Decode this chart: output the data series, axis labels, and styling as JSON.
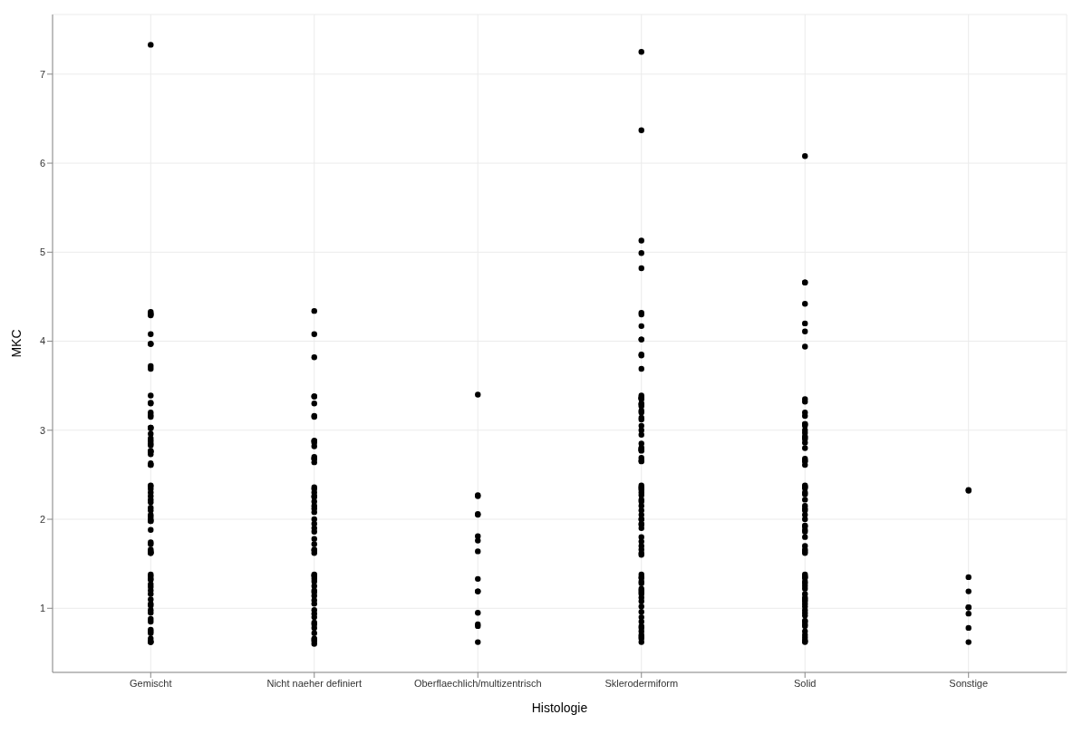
{
  "chart_data": {
    "type": "scatter",
    "xlabel": "Histologie",
    "ylabel": "MKC",
    "marker": "circle",
    "grid": true,
    "categories": [
      "Gemischt",
      "Nicht naeher definiert",
      "Oberflaechlich/multizentrisch",
      "Sklerodermiform",
      "Solid",
      "Sonstige"
    ],
    "ylim": [
      0.28,
      7.67
    ],
    "yticks": [
      1,
      2,
      3,
      4,
      5,
      6,
      7
    ],
    "series": [
      {
        "color": "#000000",
        "x": [
          "Gemischt",
          "Gemischt",
          "Gemischt",
          "Gemischt",
          "Gemischt",
          "Gemischt",
          "Gemischt",
          "Gemischt",
          "Gemischt",
          "Gemischt",
          "Gemischt",
          "Gemischt",
          "Gemischt",
          "Gemischt",
          "Gemischt",
          "Gemischt",
          "Gemischt",
          "Gemischt",
          "Gemischt",
          "Gemischt",
          "Gemischt",
          "Gemischt",
          "Gemischt",
          "Gemischt",
          "Gemischt",
          "Gemischt",
          "Gemischt",
          "Gemischt",
          "Gemischt",
          "Gemischt",
          "Gemischt",
          "Gemischt",
          "Gemischt",
          "Gemischt",
          "Gemischt",
          "Gemischt",
          "Gemischt",
          "Gemischt",
          "Gemischt",
          "Gemischt",
          "Gemischt",
          "Gemischt",
          "Gemischt",
          "Gemischt",
          "Gemischt",
          "Gemischt",
          "Gemischt",
          "Gemischt",
          "Gemischt",
          "Gemischt",
          "Gemischt",
          "Gemischt",
          "Gemischt",
          "Gemischt",
          "Gemischt",
          "Gemischt",
          "Gemischt",
          "Gemischt",
          "Gemischt",
          "Gemischt",
          "Gemischt",
          "Gemischt",
          "Gemischt",
          "Gemischt",
          "Gemischt",
          "Gemischt",
          "Gemischt",
          "Gemischt",
          "Gemischt",
          "Gemischt",
          "Gemischt",
          "Gemischt",
          "Gemischt",
          "Gemischt",
          "Gemischt",
          "Nicht naeher definiert",
          "Nicht naeher definiert",
          "Nicht naeher definiert",
          "Nicht naeher definiert",
          "Nicht naeher definiert",
          "Nicht naeher definiert",
          "Nicht naeher definiert",
          "Nicht naeher definiert",
          "Nicht naeher definiert",
          "Nicht naeher definiert",
          "Nicht naeher definiert",
          "Nicht naeher definiert",
          "Nicht naeher definiert",
          "Nicht naeher definiert",
          "Nicht naeher definiert",
          "Nicht naeher definiert",
          "Nicht naeher definiert",
          "Nicht naeher definiert",
          "Nicht naeher definiert",
          "Nicht naeher definiert",
          "Nicht naeher definiert",
          "Nicht naeher definiert",
          "Nicht naeher definiert",
          "Nicht naeher definiert",
          "Nicht naeher definiert",
          "Nicht naeher definiert",
          "Nicht naeher definiert",
          "Nicht naeher definiert",
          "Nicht naeher definiert",
          "Nicht naeher definiert",
          "Nicht naeher definiert",
          "Nicht naeher definiert",
          "Nicht naeher definiert",
          "Nicht naeher definiert",
          "Nicht naeher definiert",
          "Nicht naeher definiert",
          "Nicht naeher definiert",
          "Nicht naeher definiert",
          "Nicht naeher definiert",
          "Nicht naeher definiert",
          "Nicht naeher definiert",
          "Nicht naeher definiert",
          "Nicht naeher definiert",
          "Nicht naeher definiert",
          "Nicht naeher definiert",
          "Nicht naeher definiert",
          "Nicht naeher definiert",
          "Nicht naeher definiert",
          "Nicht naeher definiert",
          "Nicht naeher definiert",
          "Nicht naeher definiert",
          "Nicht naeher definiert",
          "Nicht naeher definiert",
          "Nicht naeher definiert",
          "Nicht naeher definiert",
          "Nicht naeher definiert",
          "Oberflaechlich/multizentrisch",
          "Oberflaechlich/multizentrisch",
          "Oberflaechlich/multizentrisch",
          "Oberflaechlich/multizentrisch",
          "Oberflaechlich/multizentrisch",
          "Oberflaechlich/multizentrisch",
          "Oberflaechlich/multizentrisch",
          "Oberflaechlich/multizentrisch",
          "Oberflaechlich/multizentrisch",
          "Oberflaechlich/multizentrisch",
          "Oberflaechlich/multizentrisch",
          "Oberflaechlich/multizentrisch",
          "Oberflaechlich/multizentrisch",
          "Oberflaechlich/multizentrisch",
          "Oberflaechlich/multizentrisch",
          "Sklerodermiform",
          "Sklerodermiform",
          "Sklerodermiform",
          "Sklerodermiform",
          "Sklerodermiform",
          "Sklerodermiform",
          "Sklerodermiform",
          "Sklerodermiform",
          "Sklerodermiform",
          "Sklerodermiform",
          "Sklerodermiform",
          "Sklerodermiform",
          "Sklerodermiform",
          "Sklerodermiform",
          "Sklerodermiform",
          "Sklerodermiform",
          "Sklerodermiform",
          "Sklerodermiform",
          "Sklerodermiform",
          "Sklerodermiform",
          "Sklerodermiform",
          "Sklerodermiform",
          "Sklerodermiform",
          "Sklerodermiform",
          "Sklerodermiform",
          "Sklerodermiform",
          "Sklerodermiform",
          "Sklerodermiform",
          "Sklerodermiform",
          "Sklerodermiform",
          "Sklerodermiform",
          "Sklerodermiform",
          "Sklerodermiform",
          "Sklerodermiform",
          "Sklerodermiform",
          "Sklerodermiform",
          "Sklerodermiform",
          "Sklerodermiform",
          "Sklerodermiform",
          "Sklerodermiform",
          "Sklerodermiform",
          "Sklerodermiform",
          "Sklerodermiform",
          "Sklerodermiform",
          "Sklerodermiform",
          "Sklerodermiform",
          "Sklerodermiform",
          "Sklerodermiform",
          "Sklerodermiform",
          "Sklerodermiform",
          "Sklerodermiform",
          "Sklerodermiform",
          "Sklerodermiform",
          "Sklerodermiform",
          "Sklerodermiform",
          "Sklerodermiform",
          "Sklerodermiform",
          "Sklerodermiform",
          "Sklerodermiform",
          "Sklerodermiform",
          "Sklerodermiform",
          "Sklerodermiform",
          "Sklerodermiform",
          "Sklerodermiform",
          "Sklerodermiform",
          "Sklerodermiform",
          "Sklerodermiform",
          "Sklerodermiform",
          "Sklerodermiform",
          "Sklerodermiform",
          "Sklerodermiform",
          "Sklerodermiform",
          "Sklerodermiform",
          "Sklerodermiform",
          "Sklerodermiform",
          "Sklerodermiform",
          "Sklerodermiform",
          "Sklerodermiform",
          "Sklerodermiform",
          "Sklerodermiform",
          "Sklerodermiform",
          "Solid",
          "Solid",
          "Solid",
          "Solid",
          "Solid",
          "Solid",
          "Solid",
          "Solid",
          "Solid",
          "Solid",
          "Solid",
          "Solid",
          "Solid",
          "Solid",
          "Solid",
          "Solid",
          "Solid",
          "Solid",
          "Solid",
          "Solid",
          "Solid",
          "Solid",
          "Solid",
          "Solid",
          "Solid",
          "Solid",
          "Solid",
          "Solid",
          "Solid",
          "Solid",
          "Solid",
          "Solid",
          "Solid",
          "Solid",
          "Solid",
          "Solid",
          "Solid",
          "Solid",
          "Solid",
          "Solid",
          "Solid",
          "Solid",
          "Solid",
          "Solid",
          "Solid",
          "Solid",
          "Solid",
          "Solid",
          "Solid",
          "Solid",
          "Solid",
          "Solid",
          "Solid",
          "Solid",
          "Solid",
          "Solid",
          "Solid",
          "Solid",
          "Solid",
          "Solid",
          "Solid",
          "Solid",
          "Solid",
          "Solid",
          "Solid",
          "Solid",
          "Solid",
          "Solid",
          "Solid",
          "Solid",
          "Solid",
          "Solid",
          "Solid",
          "Sonstige",
          "Sonstige",
          "Sonstige",
          "Sonstige",
          "Sonstige",
          "Sonstige",
          "Sonstige",
          "Sonstige",
          "Sonstige"
        ],
        "values": [
          7.33,
          3.72,
          4.08,
          4.29,
          4.3,
          4.33,
          4.31,
          3.97,
          3.97,
          3.69,
          3.39,
          3.31,
          3.3,
          3.15,
          3.2,
          3.17,
          3.03,
          3.03,
          3.02,
          2.96,
          2.85,
          2.83,
          2.77,
          2.73,
          2.76,
          2.91,
          2.76,
          2.61,
          2.61,
          2.63,
          2.88,
          0.74,
          1.16,
          0.62,
          1.38,
          0.85,
          1.05,
          0.63,
          1.27,
          0.88,
          1.33,
          0.62,
          1.1,
          0.76,
          1.36,
          0.95,
          1.2,
          0.66,
          1.03,
          1.32,
          0.72,
          1.24,
          0.98,
          1.98,
          1.63,
          2.38,
          2.13,
          1.72,
          2.22,
          1.88,
          2.3,
          1.62,
          2.05,
          2.26,
          1.64,
          2.19,
          1.98,
          2.34,
          1.74,
          2.1,
          1.62,
          2.37,
          2.03,
          1.66,
          2.0,
          4.34,
          3.82,
          4.08,
          2.68,
          3.38,
          2.86,
          2.64,
          2.82,
          2.88,
          3.15,
          3.38,
          3.3,
          3.16,
          2.88,
          2.7,
          2.68,
          0.6,
          1.09,
          1.37,
          0.82,
          1.2,
          0.66,
          1.3,
          0.94,
          1.38,
          0.72,
          1.14,
          0.9,
          1.33,
          0.63,
          1.05,
          1.25,
          0.78,
          1.36,
          0.98,
          0.65,
          1.18,
          0.84,
          1.78,
          2.26,
          1.95,
          2.3,
          1.65,
          2.08,
          2.34,
          1.72,
          2.2,
          1.86,
          2.36,
          1.62,
          2.12,
          1.9,
          2.25,
          1.66,
          2.0,
          2.15,
          2.27,
          1.76,
          1.19,
          3.4,
          2.06,
          2.05,
          2.26,
          0.82,
          0.8,
          1.81,
          1.33,
          0.62,
          0.95,
          1.64,
          1.19,
          7.25,
          6.37,
          5.13,
          4.99,
          4.82,
          4.32,
          4.3,
          4.17,
          4.02,
          4.02,
          3.85,
          3.84,
          3.69,
          3.37,
          3.39,
          3.29,
          3.36,
          3.36,
          3.27,
          3.35,
          3.22,
          3.14,
          3.3,
          3.12,
          3.0,
          2.95,
          3.05,
          2.78,
          2.77,
          2.78,
          2.85,
          2.8,
          2.66,
          2.65,
          2.8,
          2.69,
          3.2,
          0.68,
          1.12,
          0.9,
          1.35,
          0.74,
          1.02,
          1.28,
          0.62,
          1.16,
          0.85,
          1.38,
          0.7,
          1.08,
          1.3,
          0.8,
          1.2,
          0.66,
          0.96,
          1.34,
          0.78,
          1.18,
          1.22,
          2.1,
          1.7,
          2.35,
          1.94,
          2.22,
          1.62,
          2.05,
          2.38,
          1.8,
          2.15,
          1.66,
          2.3,
          1.9,
          2.2,
          1.6,
          2.36,
          2.0,
          1.75,
          2.27,
          1.95,
          2.33,
          2.0,
          6.08,
          4.66,
          4.66,
          4.42,
          4.2,
          4.11,
          3.94,
          3.07,
          3.07,
          3.05,
          3.0,
          2.86,
          2.8,
          2.92,
          3.16,
          3.32,
          3.35,
          3.2,
          2.97,
          2.68,
          2.65,
          2.66,
          2.61,
          2.93,
          2.9,
          0.62,
          1.1,
          1.34,
          0.85,
          0.7,
          1.22,
          0.98,
          1.36,
          0.64,
          1.08,
          0.8,
          1.28,
          0.92,
          1.16,
          0.67,
          1.38,
          0.86,
          1.02,
          1.3,
          0.74,
          1.12,
          0.95,
          1.35,
          0.63,
          1.05,
          0.82,
          1.25,
          1.86,
          2.3,
          1.66,
          2.1,
          2.37,
          1.92,
          1.62,
          2.22,
          2.0,
          2.35,
          1.7,
          2.15,
          1.88,
          2.38,
          1.64,
          2.05,
          2.28,
          1.8,
          2.12,
          1.93,
          2.36,
          2.32,
          2.33,
          0.78,
          1.01,
          1.01,
          0.62,
          1.35,
          1.19,
          0.94
        ]
      }
    ]
  }
}
